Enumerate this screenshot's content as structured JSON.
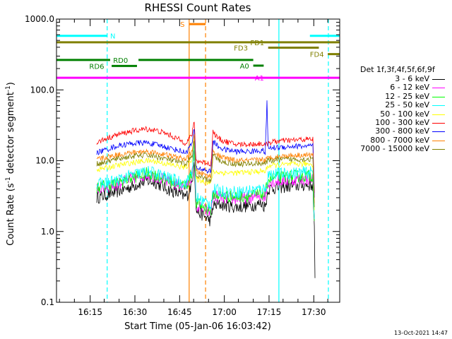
{
  "chart_data": {
    "type": "line",
    "title": "RHESSI Count Rates",
    "xlabel": "Start Time (05-Jan-06 16:03:42)",
    "ylabel_main": "Count Rate (s",
    "ylabel_sup1": "-1",
    "ylabel_mid": " detector segment",
    "ylabel_sup2": "-1",
    "ylabel_end": ")",
    "y_scale": "log",
    "ylim": [
      0.1,
      1000
    ],
    "xlim_minutes": [
      0,
      95
    ],
    "xticks": [
      {
        "label": "16:15",
        "minutes": 11.3
      },
      {
        "label": "16:30",
        "minutes": 26.3
      },
      {
        "label": "16:45",
        "minutes": 41.3
      },
      {
        "label": "17:00",
        "minutes": 56.3
      },
      {
        "label": "17:15",
        "minutes": 71.3
      },
      {
        "label": "17:30",
        "minutes": 86.3
      }
    ],
    "yticks": [
      {
        "label": "0.1",
        "value": 0.1
      },
      {
        "label": "1.0",
        "value": 1
      },
      {
        "label": "10.0",
        "value": 10
      },
      {
        "label": "100.0",
        "value": 100
      },
      {
        "label": "1000.0",
        "value": 1000
      }
    ],
    "legend_title": "Det 1f,3f,4f,5f,6f,9f",
    "series": [
      {
        "name": "3 - 6 keV",
        "color": "#000000",
        "values": [
          [
            13.5,
            3.0
          ],
          [
            16,
            3.2
          ],
          [
            20,
            3.6
          ],
          [
            25,
            4.3
          ],
          [
            30,
            5.2
          ],
          [
            33,
            5.0
          ],
          [
            37,
            4.0
          ],
          [
            41,
            3.4
          ],
          [
            43,
            3.1
          ],
          [
            44,
            3.3
          ],
          [
            45.5,
            5.0
          ],
          [
            46.2,
            11
          ],
          [
            46.8,
            2.0
          ],
          [
            51.8,
            1.4
          ],
          [
            52.5,
            2.3
          ],
          [
            55,
            2.4
          ],
          [
            60,
            2.2
          ],
          [
            65,
            2.3
          ],
          [
            69,
            2.5
          ],
          [
            70,
            2.2
          ],
          [
            71,
            4.0
          ],
          [
            75,
            4.2
          ],
          [
            80,
            4.4
          ],
          [
            83,
            4.5
          ],
          [
            86,
            4.5
          ],
          [
            86.5,
            1.0
          ],
          [
            86.7,
            0.22
          ]
        ]
      },
      {
        "name": "6 - 12 keV",
        "color": "#ff00ff",
        "values": [
          [
            13.5,
            4.0
          ],
          [
            16,
            4.2
          ],
          [
            20,
            4.6
          ],
          [
            25,
            5.5
          ],
          [
            30,
            6.4
          ],
          [
            33,
            6.1
          ],
          [
            37,
            5.1
          ],
          [
            41,
            4.5
          ],
          [
            43,
            4.2
          ],
          [
            44,
            4.5
          ],
          [
            45.5,
            6.5
          ],
          [
            46.2,
            14
          ],
          [
            46.8,
            2.3
          ],
          [
            51.8,
            1.8
          ],
          [
            52.5,
            3.2
          ],
          [
            55,
            3.0
          ],
          [
            60,
            2.9
          ],
          [
            65,
            3.0
          ],
          [
            69,
            3.2
          ],
          [
            70,
            3.1
          ],
          [
            71,
            5.0
          ],
          [
            75,
            5.2
          ],
          [
            80,
            5.4
          ],
          [
            83,
            5.5
          ],
          [
            86,
            5.5
          ],
          [
            86.5,
            1.4
          ]
        ]
      },
      {
        "name": "12 - 25 keV",
        "color": "#00ff00",
        "values": [
          [
            13.5,
            4.2
          ],
          [
            16,
            4.4
          ],
          [
            20,
            4.8
          ],
          [
            25,
            5.7
          ],
          [
            30,
            6.6
          ],
          [
            33,
            6.3
          ],
          [
            37,
            5.3
          ],
          [
            41,
            4.7
          ],
          [
            43,
            4.4
          ],
          [
            44,
            4.8
          ],
          [
            45.5,
            7.0
          ],
          [
            46.2,
            15
          ],
          [
            46.8,
            2.5
          ],
          [
            51.8,
            2.0
          ],
          [
            52.5,
            3.4
          ],
          [
            55,
            3.2
          ],
          [
            60,
            3.1
          ],
          [
            65,
            3.2
          ],
          [
            69,
            3.4
          ],
          [
            70,
            3.3
          ],
          [
            71,
            5.5
          ],
          [
            75,
            5.8
          ],
          [
            80,
            6.0
          ],
          [
            83,
            6.1
          ],
          [
            86,
            6.1
          ],
          [
            86.5,
            1.4
          ]
        ]
      },
      {
        "name": "25 - 50 keV",
        "color": "#00ffff",
        "values": [
          [
            13.5,
            4.6
          ],
          [
            16,
            4.8
          ],
          [
            20,
            5.2
          ],
          [
            25,
            6.2
          ],
          [
            30,
            7.0
          ],
          [
            33,
            6.7
          ],
          [
            37,
            5.8
          ],
          [
            41,
            5.1
          ],
          [
            43,
            4.8
          ],
          [
            44,
            5.2
          ],
          [
            45.5,
            7.5
          ],
          [
            46.2,
            16
          ],
          [
            46.8,
            3.0
          ],
          [
            51.8,
            2.4
          ],
          [
            52.5,
            3.9
          ],
          [
            55,
            3.7
          ],
          [
            60,
            3.6
          ],
          [
            65,
            3.8
          ],
          [
            69,
            4.0
          ],
          [
            70,
            3.9
          ],
          [
            71,
            6.4
          ],
          [
            75,
            6.5
          ],
          [
            80,
            6.7
          ],
          [
            83,
            6.8
          ],
          [
            86,
            6.8
          ],
          [
            86.5,
            1.5
          ]
        ]
      },
      {
        "name": "50 - 100 keV",
        "color": "#ffff00",
        "values": [
          [
            13.5,
            7.5
          ],
          [
            16,
            7.8
          ],
          [
            20,
            8.5
          ],
          [
            25,
            9.3
          ],
          [
            30,
            10.0
          ],
          [
            33,
            9.8
          ],
          [
            37,
            9.0
          ],
          [
            41,
            8.3
          ],
          [
            43,
            8.0
          ],
          [
            44,
            8.5
          ],
          [
            45.5,
            11
          ],
          [
            46.2,
            20
          ],
          [
            46.8,
            5.5
          ],
          [
            51.8,
            4.8
          ],
          [
            52.5,
            7.0
          ],
          [
            55,
            6.8
          ],
          [
            60,
            6.7
          ],
          [
            65,
            6.9
          ],
          [
            69,
            7.1
          ],
          [
            70,
            7.0
          ],
          [
            71,
            8.5
          ],
          [
            75,
            8.7
          ],
          [
            80,
            8.9
          ],
          [
            83,
            9.0
          ],
          [
            86,
            9.0
          ],
          [
            86.5,
            2.0
          ]
        ]
      },
      {
        "name": "100 - 300 keV",
        "color": "#ff0000",
        "values": [
          [
            13.5,
            18
          ],
          [
            16,
            20
          ],
          [
            20,
            23
          ],
          [
            25,
            26
          ],
          [
            30,
            28
          ],
          [
            33,
            27
          ],
          [
            37,
            24
          ],
          [
            41,
            20
          ],
          [
            43,
            18
          ],
          [
            44,
            19
          ],
          [
            45.5,
            24
          ],
          [
            46.2,
            35
          ],
          [
            46.8,
            10
          ],
          [
            51.8,
            9
          ],
          [
            52.5,
            26
          ],
          [
            54,
            21
          ],
          [
            56,
            19
          ],
          [
            60,
            17
          ],
          [
            65,
            17
          ],
          [
            69,
            17.5
          ],
          [
            70,
            16
          ],
          [
            71,
            18
          ],
          [
            75,
            19
          ],
          [
            80,
            19.5
          ],
          [
            83,
            20
          ],
          [
            86,
            20
          ],
          [
            86.5,
            3.5
          ]
        ]
      },
      {
        "name": "300 - 800 keV",
        "color": "#0000ff",
        "values": [
          [
            13.5,
            13
          ],
          [
            16,
            14
          ],
          [
            20,
            16
          ],
          [
            25,
            17.5
          ],
          [
            30,
            18
          ],
          [
            33,
            17
          ],
          [
            37,
            15.5
          ],
          [
            41,
            14
          ],
          [
            43,
            13
          ],
          [
            44,
            14
          ],
          [
            45.5,
            18
          ],
          [
            46.2,
            28
          ],
          [
            46.8,
            8
          ],
          [
            51.8,
            7
          ],
          [
            52.5,
            19
          ],
          [
            54,
            16
          ],
          [
            56,
            14.5
          ],
          [
            60,
            13.5
          ],
          [
            65,
            13.5
          ],
          [
            69,
            14
          ],
          [
            70,
            13
          ],
          [
            70.6,
            65
          ],
          [
            71,
            15
          ],
          [
            75,
            15.5
          ],
          [
            80,
            16
          ],
          [
            83,
            16
          ],
          [
            86,
            16
          ],
          [
            86.5,
            3.0
          ]
        ]
      },
      {
        "name": "800 - 7000 keV",
        "color": "#ff8000",
        "values": [
          [
            13.5,
            10.5
          ],
          [
            16,
            11
          ],
          [
            20,
            12
          ],
          [
            25,
            13
          ],
          [
            30,
            13.5
          ],
          [
            33,
            13
          ],
          [
            37,
            12
          ],
          [
            41,
            11
          ],
          [
            43,
            10.5
          ],
          [
            44,
            11
          ],
          [
            45.5,
            14
          ],
          [
            46.2,
            22
          ],
          [
            46.8,
            7
          ],
          [
            51.8,
            6
          ],
          [
            52.5,
            14
          ],
          [
            54,
            12
          ],
          [
            56,
            11
          ],
          [
            60,
            10
          ],
          [
            65,
            10
          ],
          [
            69,
            10.5
          ],
          [
            70,
            10
          ],
          [
            71,
            11
          ],
          [
            75,
            11.5
          ],
          [
            80,
            12
          ],
          [
            83,
            12
          ],
          [
            86,
            12
          ],
          [
            86.5,
            2.5
          ]
        ]
      },
      {
        "name": "7000 - 15000 keV",
        "color": "#808000",
        "values": [
          [
            13.5,
            9.0
          ],
          [
            16,
            9.5
          ],
          [
            20,
            10.5
          ],
          [
            25,
            11.5
          ],
          [
            30,
            12
          ],
          [
            33,
            11.5
          ],
          [
            37,
            10.5
          ],
          [
            41,
            9.5
          ],
          [
            43,
            9.0
          ],
          [
            44,
            9.5
          ],
          [
            45.5,
            12
          ],
          [
            46.2,
            19
          ],
          [
            46.8,
            6
          ],
          [
            51.8,
            5.2
          ],
          [
            52.5,
            12
          ],
          [
            54,
            10.5
          ],
          [
            56,
            9.5
          ],
          [
            60,
            9
          ],
          [
            65,
            9
          ],
          [
            69,
            9.3
          ],
          [
            70,
            9
          ],
          [
            71,
            10
          ],
          [
            75,
            10.3
          ],
          [
            80,
            10.5
          ],
          [
            83,
            10.5
          ],
          [
            86,
            10.5
          ],
          [
            86.5,
            2.2
          ]
        ]
      }
    ],
    "flag_bars": [
      {
        "label": "N",
        "color": "#00ffff",
        "y": 580,
        "segments": [
          [
            0,
            17
          ],
          [
            85,
            95
          ]
        ],
        "label_at": 18
      },
      {
        "label": "S",
        "color": "#ff8000",
        "y": 850,
        "segments": [
          [
            44.5,
            50
          ]
        ],
        "label_at": 41.5
      },
      {
        "label": "FD1",
        "color": "#808000",
        "y": 470,
        "segments": [
          [
            0,
            95
          ]
        ],
        "label_at": 65
      },
      {
        "label": "FD3",
        "color": "#808000",
        "y": 395,
        "segments": [
          [
            71,
            88
          ]
        ],
        "label_at": 59.5
      },
      {
        "label": "FD4",
        "color": "#808000",
        "y": 320,
        "segments": [
          [
            91,
            95
          ]
        ],
        "label_at": 85
      },
      {
        "label": "RD0",
        "color": "#008000",
        "y": 265,
        "segments": [
          [
            0,
            18
          ],
          [
            27.5,
            66
          ]
        ],
        "label_at": 19
      },
      {
        "label": "RD6",
        "color": "#008000",
        "y": 218,
        "segments": [
          [
            18.5,
            27
          ]
        ],
        "label_at": 11
      },
      {
        "label": "A0",
        "color": "#008000",
        "y": 220,
        "segments": [
          [
            66,
            69.5
          ]
        ],
        "label_at": 61.5
      },
      {
        "label": "A1",
        "color": "#ff00ff",
        "y": 148,
        "segments": [
          [
            0,
            95
          ]
        ],
        "label_at": 66.5
      }
    ],
    "vlines": [
      {
        "minutes": 17,
        "color": "#00ffff",
        "style": "dashed"
      },
      {
        "minutes": 44.5,
        "color": "#ff8000",
        "style": "solid"
      },
      {
        "minutes": 50,
        "color": "#ff8000",
        "style": "dashed"
      },
      {
        "minutes": 74.6,
        "color": "#00ffff",
        "style": "solid"
      },
      {
        "minutes": 91.2,
        "color": "#00ffff",
        "style": "dashed"
      }
    ],
    "grid": false
  },
  "footer_stamp": "13-Oct-2021 14:47"
}
